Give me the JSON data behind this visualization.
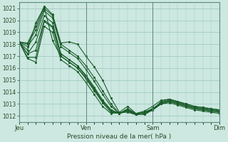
{
  "title": "",
  "xlabel": "Pression niveau de la mer( hPa )",
  "bg_color": "#cce8e0",
  "grid_color": "#a8cfc8",
  "line_color": "#1a5c2a",
  "ylim": [
    1011.5,
    1021.5
  ],
  "yticks": [
    1012,
    1013,
    1014,
    1015,
    1016,
    1017,
    1018,
    1019,
    1020,
    1021
  ],
  "xtick_labels": [
    "Jeu",
    "Ven",
    "Sam",
    "Dim"
  ],
  "xtick_positions": [
    0,
    8,
    16,
    24
  ],
  "total_points": 24,
  "lines": [
    [
      1018.2,
      1018.1,
      1019.5,
      1021.2,
      1020.5,
      1018.1,
      1018.2,
      1018.0,
      1017.0,
      1016.1,
      1015.0,
      1013.5,
      1012.3,
      1012.8,
      1012.2,
      1012.1,
      1012.5,
      1013.2,
      1013.4,
      1013.2,
      1013.0,
      1012.8,
      1012.7,
      1012.6,
      1012.5
    ],
    [
      1018.2,
      1018.0,
      1019.2,
      1021.0,
      1020.4,
      1018.0,
      1017.5,
      1017.0,
      1016.2,
      1015.2,
      1014.1,
      1013.0,
      1012.2,
      1012.5,
      1012.1,
      1012.2,
      1012.6,
      1013.1,
      1013.3,
      1013.1,
      1012.9,
      1012.7,
      1012.6,
      1012.5,
      1012.4
    ],
    [
      1018.2,
      1017.8,
      1018.8,
      1020.8,
      1020.2,
      1017.8,
      1017.3,
      1016.8,
      1015.9,
      1014.9,
      1013.8,
      1012.8,
      1012.2,
      1012.4,
      1012.1,
      1012.2,
      1012.5,
      1013.0,
      1013.2,
      1013.0,
      1012.8,
      1012.6,
      1012.5,
      1012.4,
      1012.3
    ],
    [
      1018.2,
      1017.5,
      1019.8,
      1021.1,
      1018.3,
      1017.0,
      1016.5,
      1016.0,
      1015.2,
      1014.2,
      1013.2,
      1012.4,
      1012.2,
      1012.5,
      1012.2,
      1012.4,
      1012.8,
      1013.3,
      1013.4,
      1013.2,
      1013.0,
      1012.8,
      1012.7,
      1012.6,
      1012.5
    ],
    [
      1018.2,
      1017.2,
      1018.2,
      1020.4,
      1019.8,
      1017.2,
      1016.7,
      1016.2,
      1015.4,
      1014.4,
      1013.3,
      1012.5,
      1012.2,
      1012.6,
      1012.2,
      1012.3,
      1012.6,
      1013.1,
      1013.3,
      1013.1,
      1012.9,
      1012.7,
      1012.6,
      1012.5,
      1012.4
    ],
    [
      1018.2,
      1016.9,
      1016.9,
      1019.9,
      1019.4,
      1017.0,
      1016.5,
      1016.0,
      1015.1,
      1014.1,
      1013.1,
      1012.3,
      1012.2,
      1012.4,
      1012.1,
      1012.2,
      1012.5,
      1013.0,
      1013.2,
      1013.0,
      1012.8,
      1012.6,
      1012.5,
      1012.4,
      1012.3
    ],
    [
      1018.2,
      1016.8,
      1016.5,
      1019.5,
      1019.0,
      1016.7,
      1016.2,
      1015.7,
      1014.8,
      1013.8,
      1012.8,
      1012.2,
      1012.3,
      1012.3,
      1012.1,
      1012.2,
      1012.5,
      1013.0,
      1013.1,
      1012.9,
      1012.7,
      1012.5,
      1012.4,
      1012.3,
      1012.2
    ],
    [
      1018.2,
      1017.2,
      1017.5,
      1020.0,
      1019.5,
      1017.2,
      1016.7,
      1016.2,
      1015.3,
      1014.3,
      1013.3,
      1012.5,
      1012.2,
      1012.5,
      1012.2,
      1012.3,
      1012.6,
      1013.1,
      1013.3,
      1013.1,
      1012.9,
      1012.7,
      1012.6,
      1012.5,
      1012.4
    ]
  ]
}
